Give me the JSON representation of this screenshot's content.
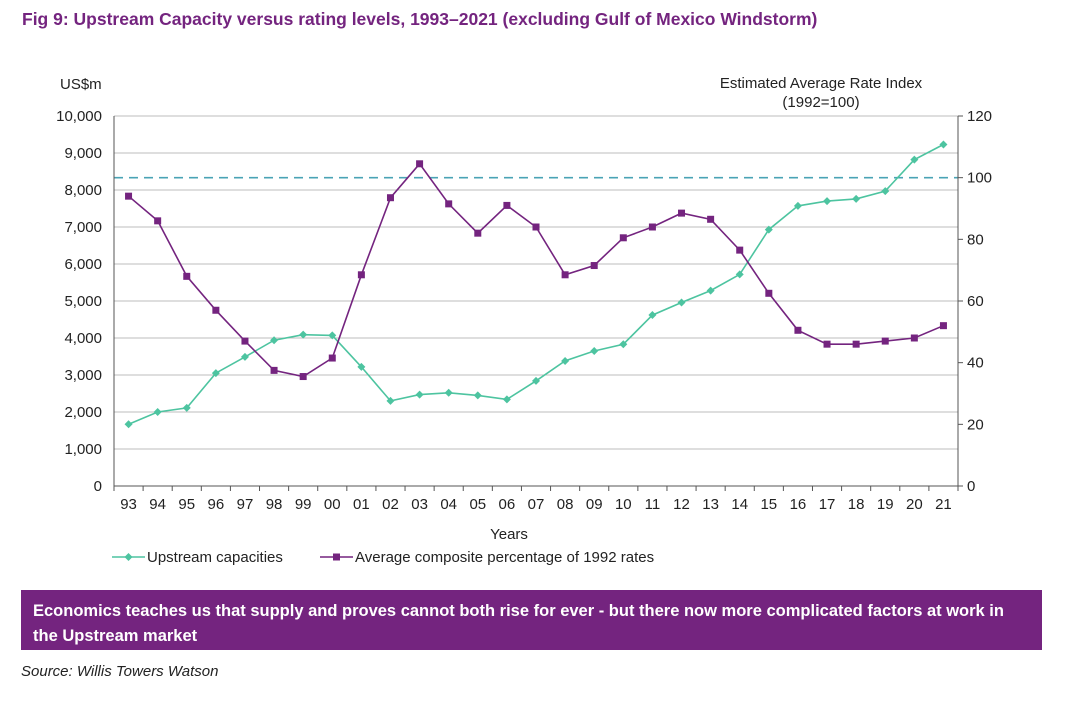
{
  "title": "Fig 9: Upstream Capacity versus rating levels, 1993–2021 (excluding Gulf of Mexico Windstorm)",
  "banner_text": "Economics teaches us that supply and proves cannot both rise for ever - but there now more complicated factors at work in the Upstream market",
  "source": "Source: Willis Towers Watson",
  "colors": {
    "title": "#74247f",
    "banner_bg": "#74247f",
    "series_capacity": "#4dc4a0",
    "series_rates": "#74247f",
    "reference_line": "#4aa3b5",
    "grid": "#a6a6a6"
  },
  "chart_data": {
    "type": "line",
    "xlabel": "Years",
    "ylabel_left": "US$m",
    "ylabel_right_line1": "Estimated Average Rate Index",
    "ylabel_right_line2": "(1992=100)",
    "categories": [
      "93",
      "94",
      "95",
      "96",
      "97",
      "98",
      "99",
      "00",
      "01",
      "02",
      "03",
      "04",
      "05",
      "06",
      "07",
      "08",
      "09",
      "10",
      "11",
      "12",
      "13",
      "14",
      "15",
      "16",
      "17",
      "18",
      "19",
      "20",
      "21"
    ],
    "y_left": {
      "range": [
        0,
        10000
      ],
      "ticks": [
        0,
        1000,
        2000,
        3000,
        4000,
        5000,
        6000,
        7000,
        8000,
        9000,
        10000
      ],
      "tick_labels": [
        "0",
        "1,000",
        "2,000",
        "3,000",
        "4,000",
        "5,000",
        "6,000",
        "7,000",
        "8,000",
        "9,000",
        "10,000"
      ]
    },
    "y_right": {
      "range": [
        0,
        120
      ],
      "ticks": [
        0,
        20,
        40,
        60,
        80,
        100,
        120
      ],
      "tick_labels": [
        "0",
        "20",
        "40",
        "60",
        "80",
        "100",
        "120"
      ]
    },
    "reference_line": {
      "axis": "right",
      "value": 100,
      "style": "dashed"
    },
    "grid": "horizontal",
    "series": [
      {
        "name": "Upstream capacities",
        "axis": "left",
        "marker": "diamond",
        "values": [
          1670,
          2000,
          2110,
          3050,
          3490,
          3940,
          4090,
          4070,
          3220,
          2300,
          2470,
          2520,
          2450,
          2340,
          2840,
          3380,
          3650,
          3830,
          4620,
          4960,
          5280,
          5720,
          6930,
          7570,
          7700,
          7760,
          7970,
          8820,
          9230
        ]
      },
      {
        "name": "Average composite percentage of 1992 rates",
        "axis": "right",
        "marker": "square",
        "values": [
          94,
          86,
          68,
          57,
          47,
          37.5,
          35.5,
          41.5,
          68.5,
          93.5,
          104.5,
          91.5,
          82,
          91,
          84,
          68.5,
          71.5,
          80.5,
          84,
          88.5,
          86.5,
          76.5,
          62.5,
          50.5,
          46,
          46,
          47,
          48,
          52
        ]
      }
    ],
    "legend_position": "bottom-left"
  }
}
